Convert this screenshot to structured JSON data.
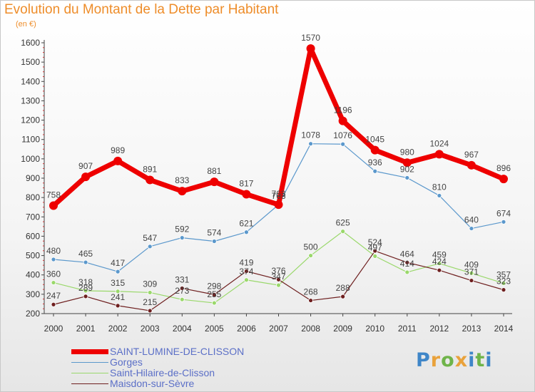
{
  "header": {
    "title": "Evolution du Montant de la Dette par Habitant",
    "unit": "(en €)"
  },
  "logo": {
    "text": "Proxiti",
    "colors": [
      "#3f86c8",
      "#e9a23b",
      "#6fb44a",
      "#e9a23b",
      "#3f86c8",
      "#6fb44a",
      "#3f86c8"
    ]
  },
  "chart_data": {
    "type": "line",
    "title": "Evolution du Montant de la Dette par Habitant",
    "ylabel": "(en €)",
    "xlabel": "",
    "x": [
      2000,
      2001,
      2002,
      2003,
      2004,
      2005,
      2006,
      2007,
      2008,
      2009,
      2010,
      2011,
      2012,
      2013,
      2014
    ],
    "ylim": [
      200,
      1600
    ],
    "yticks": [
      200,
      300,
      400,
      500,
      600,
      700,
      800,
      900,
      1000,
      1100,
      1200,
      1300,
      1400,
      1500,
      1600
    ],
    "grid": false,
    "legend": "bottom-left",
    "series": [
      {
        "name": "SAINT-LUMINE-DE-CLISSON",
        "color": "#ee0000",
        "width": 7,
        "marker": 6,
        "values": [
          758,
          907,
          989,
          891,
          833,
          881,
          817,
          763,
          1570,
          1196,
          1045,
          980,
          1024,
          967,
          896
        ]
      },
      {
        "name": "Gorges",
        "color": "#5b98cc",
        "width": 1.2,
        "marker": 3,
        "values": [
          480,
          465,
          417,
          547,
          592,
          574,
          621,
          763,
          1078,
          1076,
          936,
          902,
          810,
          640,
          674
        ]
      },
      {
        "name": "Saint-Hilaire-de-Clisson",
        "color": "#9ad86b",
        "width": 1.2,
        "marker": 3,
        "values": [
          360,
          318,
          315,
          309,
          273,
          255,
          374,
          347,
          500,
          625,
          497,
          414,
          459,
          409,
          357
        ]
      },
      {
        "name": "Maisdon-sur-Sèvre",
        "color": "#6e1f1f",
        "width": 1.2,
        "marker": 3,
        "values": [
          247,
          289,
          241,
          215,
          331,
          298,
          419,
          376,
          268,
          288,
          524,
          464,
          424,
          371,
          323
        ]
      }
    ]
  }
}
